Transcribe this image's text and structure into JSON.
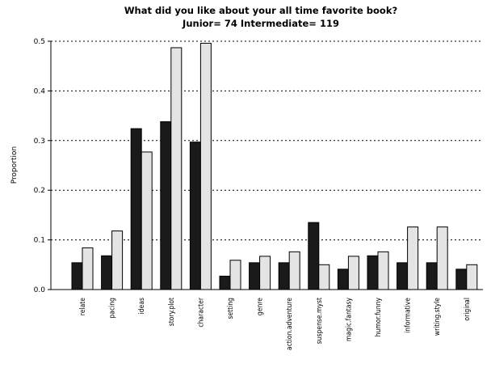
{
  "chart_data": {
    "type": "bar",
    "title": "What did you like about your all time favorite book?",
    "subtitle": "Junior= 74 Intermediate= 119",
    "ylabel": "Proportion",
    "xlabel": "",
    "ylim": [
      0,
      0.5
    ],
    "yticks": [
      "0.0",
      "0.1",
      "0.2",
      "0.3",
      "0.4",
      "0.5"
    ],
    "grid": "horizontal-dotted",
    "categories": [
      "relate",
      "pacing",
      "ideas",
      "story.plot",
      "character",
      "setting",
      "genre",
      "action.adventure",
      "suspense.myst",
      "magic.fantasy",
      "humor.funny",
      "informative",
      "writing.style",
      "original"
    ],
    "series": [
      {
        "values": [
          0.054,
          0.068,
          0.324,
          0.338,
          0.297,
          0.027,
          0.054,
          0.054,
          0.135,
          0.041,
          0.068,
          0.054,
          0.054,
          0.041
        ],
        "color": "#1a1a1a"
      },
      {
        "values": [
          0.084,
          0.118,
          0.277,
          0.487,
          0.496,
          0.059,
          0.067,
          0.076,
          0.05,
          0.067,
          0.076,
          0.126,
          0.126,
          0.05
        ],
        "color": "#e4e4e4"
      }
    ]
  }
}
